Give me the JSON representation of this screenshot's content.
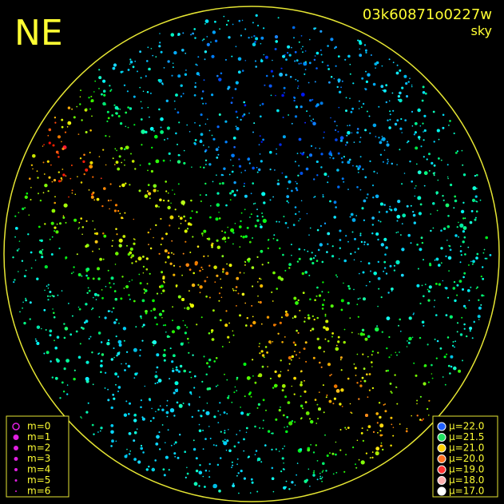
{
  "header": {
    "direction": "NE",
    "image_id": "03k60871o0227w",
    "filter": "sky"
  },
  "magnitude_legend": [
    "m=0",
    "m=1",
    "m=2",
    "m=3",
    "m=4",
    "m=5",
    "m=6"
  ],
  "brightness_legend": [
    "μ=22.0",
    "μ=21.5",
    "μ=21.0",
    "μ=20.0",
    "μ=19.0",
    "μ=18.0",
    "μ=17.0"
  ]
}
